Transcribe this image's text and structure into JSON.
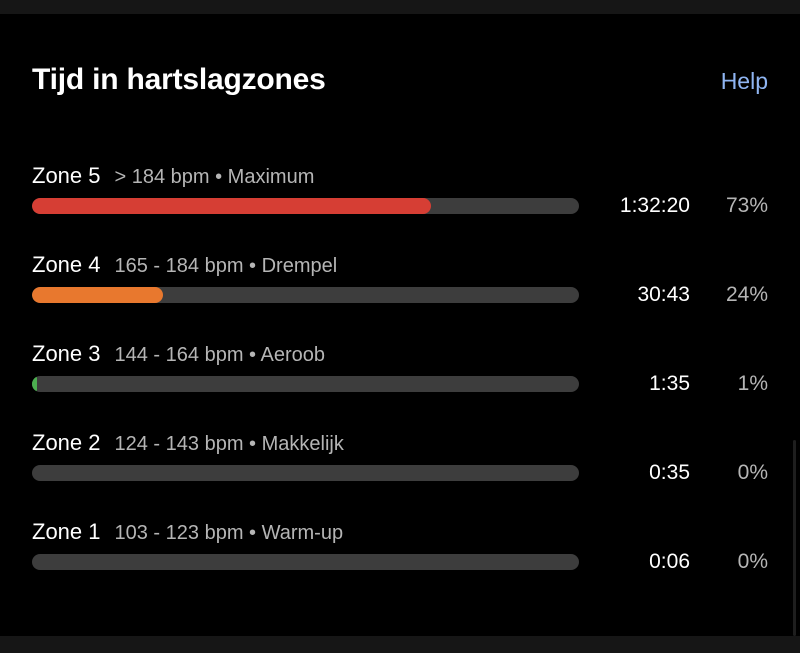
{
  "header": {
    "title": "Tijd in hartslagzones",
    "help_label": "Help",
    "help_color": "#8fb5f2"
  },
  "zones": [
    {
      "name": "Zone 5",
      "range": "> 184 bpm • Maximum",
      "time": "1:32:20",
      "percent": "73%",
      "fill": 73,
      "color": "#d63e34"
    },
    {
      "name": "Zone 4",
      "range": "165 - 184 bpm • Drempel",
      "time": "30:43",
      "percent": "24%",
      "fill": 24,
      "color": "#e8782e"
    },
    {
      "name": "Zone 3",
      "range": "144 - 164 bpm • Aeroob",
      "time": "1:35",
      "percent": "1%",
      "fill": 1,
      "color": "#4caf50"
    },
    {
      "name": "Zone 2",
      "range": "124 - 143 bpm • Makkelijk",
      "time": "0:35",
      "percent": "0%",
      "fill": 0,
      "color": "#3d8fd6"
    },
    {
      "name": "Zone 1",
      "range": "103 - 123 bpm • Warm-up",
      "time": "0:06",
      "percent": "0%",
      "fill": 0,
      "color": "#9e9e9e"
    }
  ]
}
